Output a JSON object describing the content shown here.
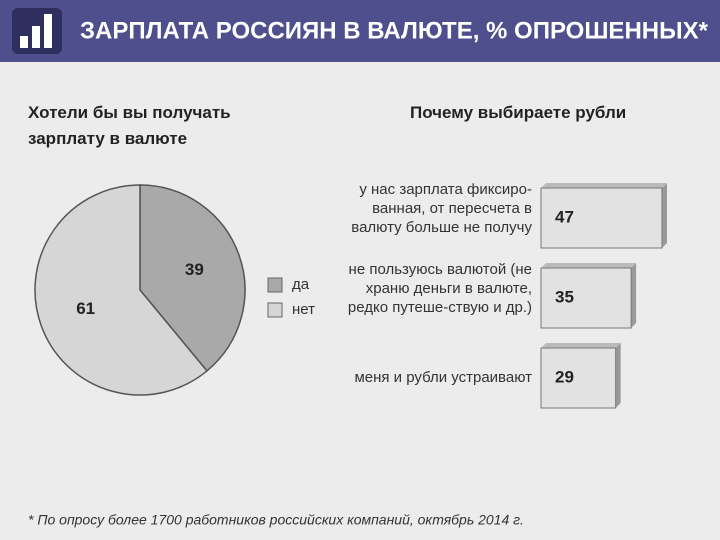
{
  "title": "ЗАРПЛАТА РОССИЯН В ВАЛЮТЕ, % ОПРОШЕННЫХ*",
  "footnote": "* По опросу более 1700 работников российских компаний, октябрь 2014 г.",
  "chart_data": [
    {
      "type": "pie",
      "title": "Хотели бы вы получать зарплату в валюте",
      "categories": [
        "да",
        "нет"
      ],
      "values": [
        39,
        61
      ],
      "colors": [
        "#a9a9a9",
        "#d6d6d6"
      ]
    },
    {
      "type": "bar",
      "title": "Почему выбираете рубли",
      "categories": [
        "у нас зарплата фиксиро-ванная, от пересчета в валюту больше не получу",
        "не пользуюсь валютой (не храню деньги в валюте, редко путеше-ствую и др.)",
        "меня и рубли устраивают"
      ],
      "values": [
        47,
        35,
        29
      ],
      "color": "#e2e2e2"
    }
  ]
}
